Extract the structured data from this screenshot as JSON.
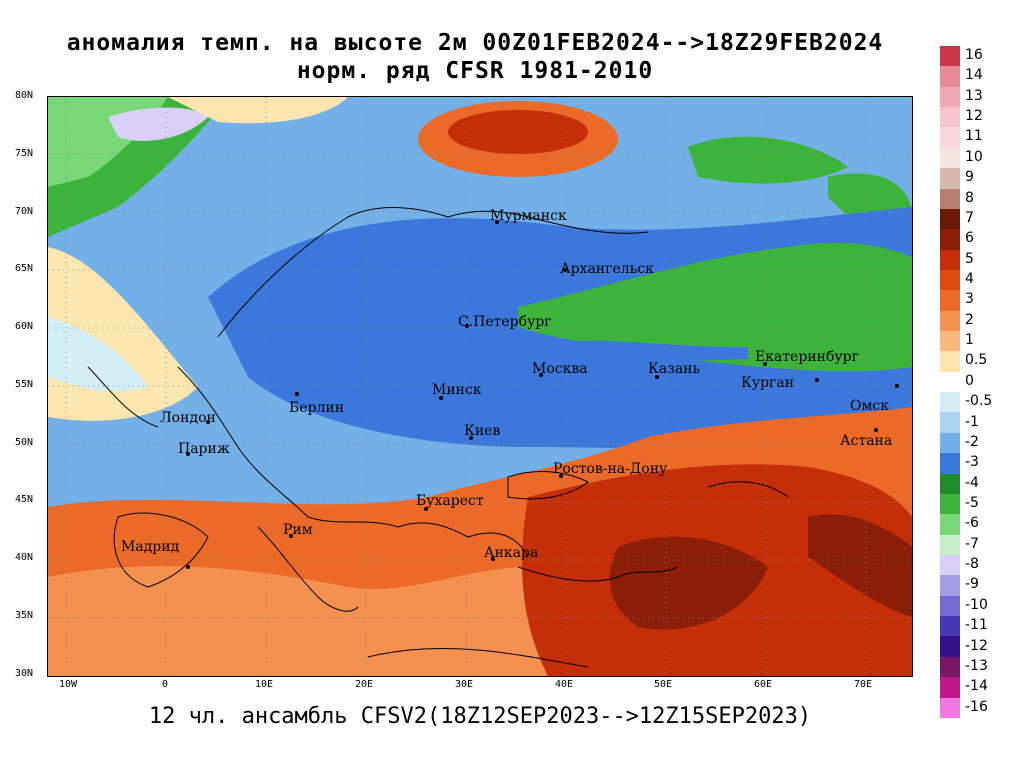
{
  "header": {
    "line1": "аномалия темп. на высоте 2м 00Z01FEB2024-->18Z29FEB2024",
    "line2": "норм. ряд CFSR 1981-2010"
  },
  "footer": "12 чл. ансамбль CFSV2(18Z12SEP2023-->12Z15SEP2023)",
  "axes": {
    "lat_ticks": [
      "80N",
      "75N",
      "70N",
      "65N",
      "60N",
      "55N",
      "50N",
      "45N",
      "40N",
      "35N",
      "30N"
    ],
    "lon_ticks": [
      "10W",
      "0",
      "10E",
      "20E",
      "30E",
      "40E",
      "50E",
      "60E",
      "70E"
    ]
  },
  "cities": [
    {
      "name": "Мурманск"
    },
    {
      "name": "Архангельск"
    },
    {
      "name": "С.Петербург"
    },
    {
      "name": "Москва"
    },
    {
      "name": "Казань"
    },
    {
      "name": "Екатеринбург"
    },
    {
      "name": "Курган"
    },
    {
      "name": "Омск"
    },
    {
      "name": "Астана"
    },
    {
      "name": "Минск"
    },
    {
      "name": "Берлин"
    },
    {
      "name": "Лондон"
    },
    {
      "name": "Париж"
    },
    {
      "name": "Киев"
    },
    {
      "name": "Ростов-на-Дону"
    },
    {
      "name": "Бухарест"
    },
    {
      "name": "Рим"
    },
    {
      "name": "Мадрид"
    },
    {
      "name": "Анкара"
    }
  ],
  "colorbar": {
    "labels": [
      "16",
      "14",
      "13",
      "12",
      "11",
      "10",
      "9",
      "8",
      "7",
      "6",
      "5",
      "4",
      "3",
      "2",
      "1",
      "0.5",
      "0",
      "-0.5",
      "-1",
      "-2",
      "-3",
      "-4",
      "-5",
      "-6",
      "-7",
      "-8",
      "-9",
      "-10",
      "-11",
      "-12",
      "-13",
      "-14",
      "-16"
    ],
    "colors": [
      "#c8374a",
      "#e68a98",
      "#f0a8b4",
      "#f6c4cc",
      "#f8d8dc",
      "#f4e4e0",
      "#d8b8ac",
      "#b88070",
      "#6b1a08",
      "#8c1e08",
      "#c42e08",
      "#dc4a10",
      "#ec6a28",
      "#f49050",
      "#f8b880",
      "#fce6b0",
      "#ffffff",
      "#d4eef8",
      "#a8d4f0",
      "#74b0e8",
      "#3c78dc",
      "#1e8c28",
      "#3cb43c",
      "#78d878",
      "#c8f0c8",
      "#d8d0f8",
      "#a89ee8",
      "#7868d4",
      "#4838b8",
      "#34108c",
      "#7a1868",
      "#c0168c",
      "#f078e0"
    ]
  }
}
